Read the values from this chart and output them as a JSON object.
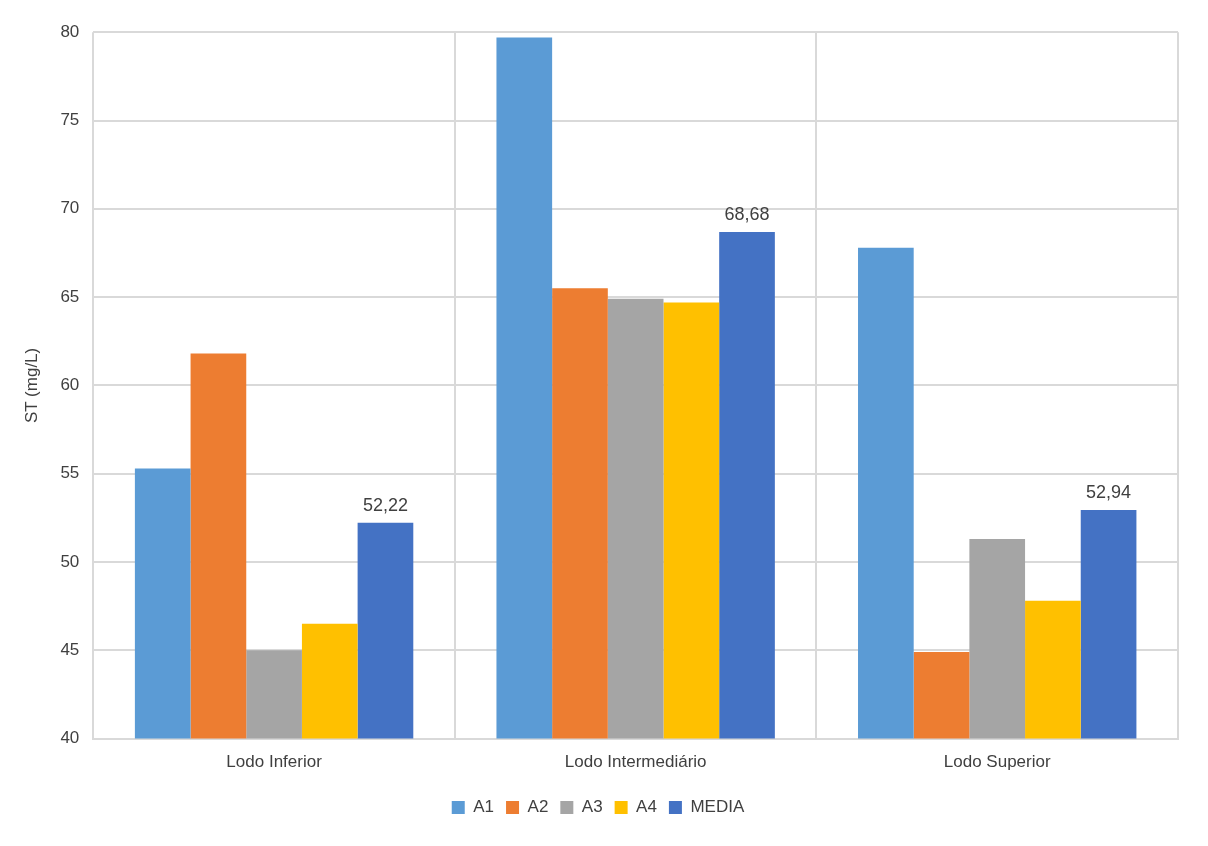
{
  "chart_data": {
    "type": "bar",
    "ylabel": "ST (mg/L)",
    "categories": [
      "Lodo Inferior",
      "Lodo Intermediário",
      "Lodo Superior"
    ],
    "series": [
      {
        "name": "A1",
        "color": "#5b9bd5",
        "values": [
          55.3,
          79.7,
          67.8
        ]
      },
      {
        "name": "A2",
        "color": "#ed7d31",
        "values": [
          61.8,
          65.5,
          44.9
        ]
      },
      {
        "name": "A3",
        "color": "#a5a5a5",
        "values": [
          45.0,
          64.9,
          51.3
        ]
      },
      {
        "name": "A4",
        "color": "#ffc000",
        "values": [
          46.5,
          64.7,
          47.8
        ]
      },
      {
        "name": "MEDIA",
        "color": "#4472c4",
        "values": [
          52.22,
          68.68,
          52.94
        ],
        "value_labels": [
          "52,22",
          "68,68",
          "52,94"
        ]
      }
    ],
    "ylim": [
      40,
      80
    ],
    "yticks": [
      40,
      45,
      50,
      55,
      60,
      65,
      70,
      75,
      80
    ],
    "grid": true,
    "legend": "bottom"
  }
}
